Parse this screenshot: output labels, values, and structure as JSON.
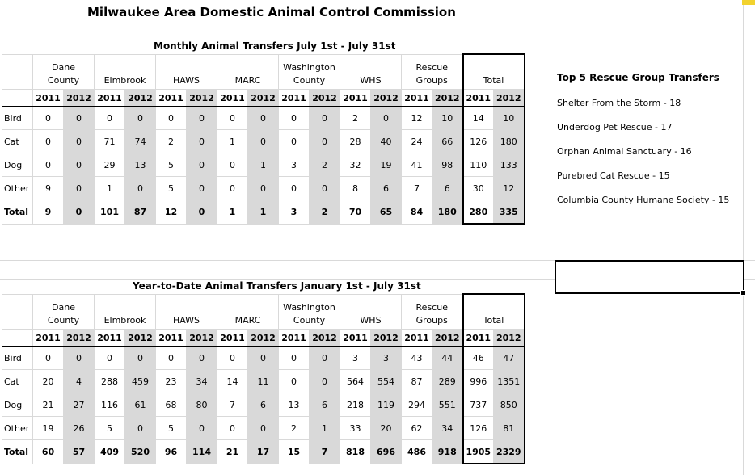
{
  "title": "Milwaukee Area Domestic Animal Control Commission",
  "monthly": {
    "subtitle": "Monthly Animal Transfers July 1st - July 31st",
    "groups": [
      [
        "Dane",
        "County"
      ],
      [
        "",
        "Elmbrook"
      ],
      [
        "",
        "HAWS"
      ],
      [
        "",
        "MARC"
      ],
      [
        "Washington",
        "County"
      ],
      [
        "",
        "WHS"
      ],
      [
        "Rescue",
        "Groups"
      ],
      [
        "",
        "Total"
      ]
    ],
    "years": [
      "2011",
      "2012"
    ],
    "rows": [
      {
        "label": "Bird",
        "values": [
          "0",
          "0",
          "0",
          "0",
          "0",
          "0",
          "0",
          "0",
          "0",
          "0",
          "2",
          "0",
          "12",
          "10",
          "14",
          "10"
        ]
      },
      {
        "label": "Cat",
        "values": [
          "0",
          "0",
          "71",
          "74",
          "2",
          "0",
          "1",
          "0",
          "0",
          "0",
          "28",
          "40",
          "24",
          "66",
          "126",
          "180"
        ]
      },
      {
        "label": "Dog",
        "values": [
          "0",
          "0",
          "29",
          "13",
          "5",
          "0",
          "0",
          "1",
          "3",
          "2",
          "32",
          "19",
          "41",
          "98",
          "110",
          "133"
        ]
      },
      {
        "label": "Other",
        "values": [
          "9",
          "0",
          "1",
          "0",
          "5",
          "0",
          "0",
          "0",
          "0",
          "0",
          "8",
          "6",
          "7",
          "6",
          "30",
          "12"
        ]
      },
      {
        "label": "Total",
        "values": [
          "9",
          "0",
          "101",
          "87",
          "12",
          "0",
          "1",
          "1",
          "3",
          "2",
          "70",
          "65",
          "84",
          "180",
          "280",
          "335"
        ]
      }
    ]
  },
  "ytd": {
    "subtitle": "Year-to-Date Animal Transfers January 1st - July 31st",
    "rows": [
      {
        "label": "Bird",
        "values": [
          "0",
          "0",
          "0",
          "0",
          "0",
          "0",
          "0",
          "0",
          "0",
          "0",
          "3",
          "3",
          "43",
          "44",
          "46",
          "47"
        ]
      },
      {
        "label": "Cat",
        "values": [
          "20",
          "4",
          "288",
          "459",
          "23",
          "34",
          "14",
          "11",
          "0",
          "0",
          "564",
          "554",
          "87",
          "289",
          "996",
          "1351"
        ]
      },
      {
        "label": "Dog",
        "values": [
          "21",
          "27",
          "116",
          "61",
          "68",
          "80",
          "7",
          "6",
          "13",
          "6",
          "218",
          "119",
          "294",
          "551",
          "737",
          "850"
        ]
      },
      {
        "label": "Other",
        "values": [
          "19",
          "26",
          "5",
          "0",
          "5",
          "0",
          "0",
          "0",
          "2",
          "1",
          "33",
          "20",
          "62",
          "34",
          "126",
          "81"
        ]
      },
      {
        "label": "Total",
        "values": [
          "60",
          "57",
          "409",
          "520",
          "96",
          "114",
          "21",
          "17",
          "15",
          "7",
          "818",
          "696",
          "486",
          "918",
          "1905",
          "2329"
        ]
      }
    ]
  },
  "top5": {
    "title": "Top 5 Rescue Group Transfers",
    "items": [
      "Shelter From the Storm - 18",
      "Underdog Pet Rescue - 17",
      "Orphan Animal Sanctuary - 16",
      "Purebred Cat Rescue - 15",
      "Columbia County Humane Society - 15"
    ]
  },
  "colors": {
    "shade": "#d9d9d9",
    "gridline": "#d9d9d9",
    "accent": "#f2d22e"
  }
}
